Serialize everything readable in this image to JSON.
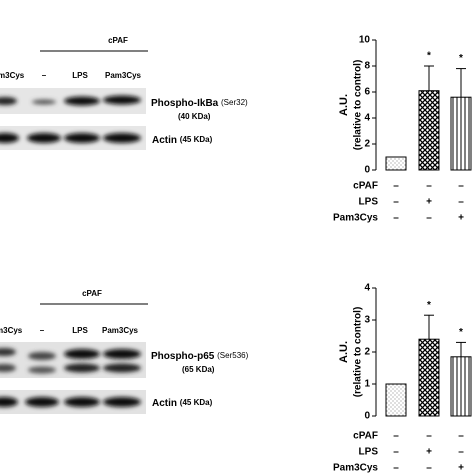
{
  "blots": [
    {
      "header": "cPAF",
      "lanes": [
        "m3Cys",
        "–",
        "LPS",
        "Pam3Cys"
      ],
      "target": {
        "name": "Phospho-IkBa",
        "site": "(Ser32)",
        "size": "(40 KDa)"
      },
      "control": {
        "name": "Actin",
        "size": "(45 KDa)"
      }
    },
    {
      "header": "cPAF",
      "lanes": [
        "m3Cys",
        "–",
        "LPS",
        "Pam3Cys"
      ],
      "target": {
        "name": "Phospho-p65",
        "site": "(Ser536)",
        "size": "(65 KDa)"
      },
      "control": {
        "name": "Actin",
        "size": "(45 KDa)"
      }
    }
  ],
  "chart_data": [
    {
      "type": "bar",
      "ylabel": [
        "A.U.",
        "(relative to control)"
      ],
      "color": "#000000",
      "values": [
        1,
        6.1,
        5.6
      ],
      "errors": [
        null,
        1.9,
        2.2
      ],
      "significance": [
        null,
        "*",
        "*"
      ],
      "patterns": [
        "dots",
        "crosshatch",
        "vstripes"
      ],
      "ylim": [
        0,
        10
      ],
      "yticks": [
        0,
        2,
        4,
        6,
        8,
        10
      ],
      "conditions": [
        {
          "name": "cPAF",
          "marks": [
            "–",
            "–",
            "–"
          ]
        },
        {
          "name": "LPS",
          "marks": [
            "–",
            "+",
            "–"
          ]
        },
        {
          "name": "Pam3Cys",
          "marks": [
            "–",
            "–",
            "+"
          ]
        }
      ]
    },
    {
      "type": "bar",
      "ylabel": [
        "A.U.",
        "(relative to control)"
      ],
      "color": "#000000",
      "values": [
        1,
        2.4,
        1.85
      ],
      "errors": [
        null,
        0.75,
        0.45
      ],
      "significance": [
        null,
        "*",
        "*"
      ],
      "patterns": [
        "dots",
        "crosshatch",
        "vstripes"
      ],
      "ylim": [
        0,
        4
      ],
      "yticks": [
        0,
        1,
        2,
        3,
        4
      ],
      "conditions": [
        {
          "name": "cPAF",
          "marks": [
            "–",
            "–",
            "–"
          ]
        },
        {
          "name": "LPS",
          "marks": [
            "–",
            "+",
            "–"
          ]
        },
        {
          "name": "Pam3Cys",
          "marks": [
            "–",
            "–",
            "+"
          ]
        }
      ]
    }
  ]
}
